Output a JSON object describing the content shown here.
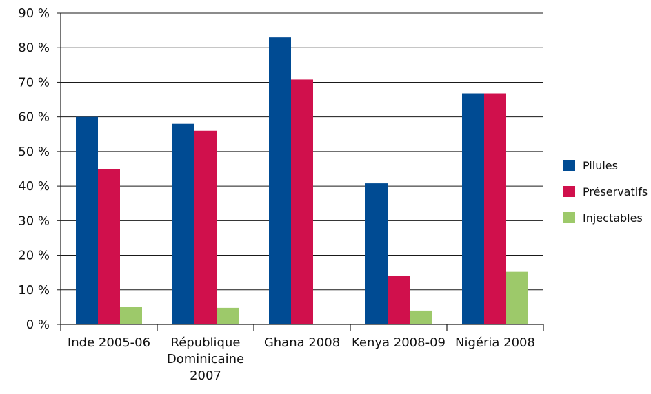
{
  "chart_data": {
    "type": "bar",
    "title": "",
    "xlabel": "",
    "ylabel": "",
    "ylim": [
      0,
      90
    ],
    "y_ticks": [
      "0 %",
      "10 %",
      "20 %",
      "30 %",
      "40 %",
      "50 %",
      "60 %",
      "70 %",
      "80 %",
      "90 %"
    ],
    "grid": true,
    "legend_position": "right",
    "categories": [
      [
        "Inde 2005-06"
      ],
      [
        "République",
        "Dominicaine",
        "2007"
      ],
      [
        "Ghana 2008"
      ],
      [
        "Kenya 2008-09"
      ],
      [
        "Nigéria 2008"
      ]
    ],
    "series": [
      {
        "name": "Pilules",
        "color": "#004b93",
        "values": [
          60,
          58,
          83,
          40.8,
          66.8
        ]
      },
      {
        "name": "Préservatifs",
        "color": "#d0104c",
        "values": [
          44.8,
          56,
          70.8,
          14,
          66.8
        ]
      },
      {
        "name": "Injectables",
        "color": "#9dc96a",
        "values": [
          5,
          4.8,
          0,
          4,
          15.2
        ]
      }
    ]
  }
}
